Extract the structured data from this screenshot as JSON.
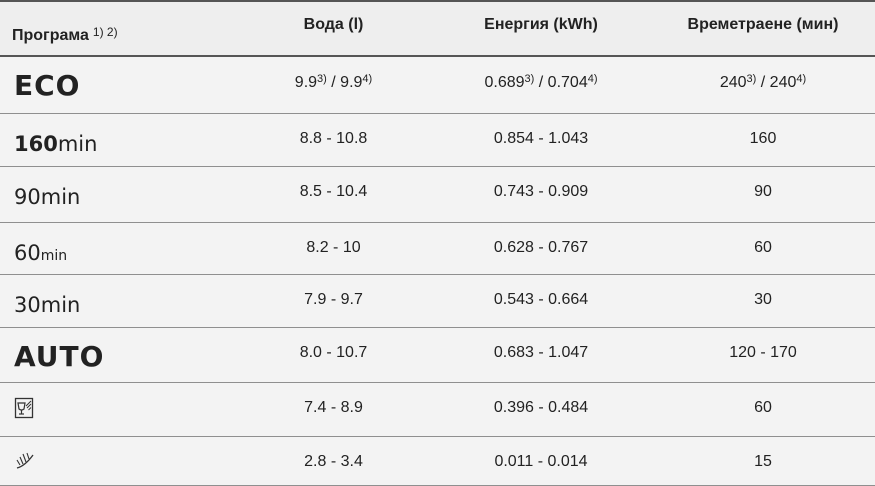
{
  "headers": {
    "program": "Програма",
    "program_notes": "1) 2)",
    "water": "Вода (l)",
    "energy": "Енергия (kWh)",
    "duration": "Времетраене (мин)"
  },
  "rows": [
    {
      "program": "ECO",
      "water": {
        "a": "9.9",
        "a_sup": "3)",
        "sep": " / ",
        "b": "9.9",
        "b_sup": "4)"
      },
      "energy": {
        "a": "0.689",
        "a_sup": "3)",
        "sep": " / ",
        "b": "0.704",
        "b_sup": "4)"
      },
      "duration": {
        "a": "240",
        "a_sup": "3)",
        "sep": " / ",
        "b": "240",
        "b_sup": "4)"
      }
    },
    {
      "program_num": "160",
      "program_unit": "min",
      "water": "8.8 - 10.8",
      "energy": "0.854 - 1.043",
      "duration": "160"
    },
    {
      "program_num": "90",
      "program_unit": "min",
      "water": "8.5 - 10.4",
      "energy": "0.743 - 0.909",
      "duration": "90"
    },
    {
      "program_num": "60",
      "program_unit": "min",
      "water": "8.2 - 10",
      "energy": "0.628 - 0.767",
      "duration": "60"
    },
    {
      "program_num": "30",
      "program_unit": "min",
      "water": "7.9 - 9.7",
      "energy": "0.543 - 0.664",
      "duration": "30"
    },
    {
      "program": "AUTO",
      "water": "8.0 - 10.7",
      "energy": "0.683 - 1.047",
      "duration": "120 - 170"
    },
    {
      "program_icon": "glass-care-icon",
      "water": "7.4 - 8.9",
      "energy": "0.396 - 0.484",
      "duration": "60"
    },
    {
      "program_icon": "rinse-spray-icon",
      "water": "2.8 - 3.4",
      "energy": "0.011 - 0.014",
      "duration": "15"
    }
  ]
}
